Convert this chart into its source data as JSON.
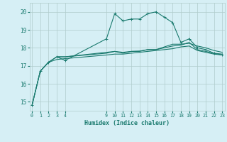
{
  "xlabel": "Humidex (Indice chaleur)",
  "bg_color": "#d6eff5",
  "grid_color": "#b0cccc",
  "line_color": "#1a7a6e",
  "xlim": [
    -0.3,
    23.3
  ],
  "ylim": [
    14.5,
    20.5
  ],
  "yticks": [
    15,
    16,
    17,
    18,
    19,
    20
  ],
  "xticks": [
    0,
    1,
    2,
    3,
    4,
    9,
    10,
    11,
    12,
    13,
    14,
    15,
    16,
    17,
    18,
    19,
    20,
    21,
    22,
    23
  ],
  "line1_x": [
    0,
    1,
    2,
    3,
    4,
    9,
    10,
    11,
    12,
    13,
    14,
    15,
    16,
    17,
    18,
    19,
    20,
    21,
    22,
    23
  ],
  "line1_y": [
    14.8,
    16.7,
    17.2,
    17.5,
    17.3,
    18.5,
    19.9,
    19.5,
    19.6,
    19.6,
    19.9,
    20.0,
    19.7,
    19.4,
    18.3,
    18.5,
    18.0,
    17.9,
    17.7,
    17.6
  ],
  "line2_x": [
    0,
    1,
    2,
    3,
    4,
    9,
    10,
    11,
    12,
    13,
    14,
    15,
    16,
    17,
    18,
    19,
    20,
    21,
    22,
    23
  ],
  "line2_y": [
    14.8,
    16.7,
    17.2,
    17.5,
    17.5,
    17.7,
    17.8,
    17.7,
    17.8,
    17.8,
    17.9,
    17.9,
    18.0,
    18.1,
    18.15,
    18.3,
    17.9,
    17.8,
    17.7,
    17.65
  ],
  "line3_x": [
    0,
    1,
    2,
    3,
    4,
    9,
    10,
    11,
    12,
    13,
    14,
    15,
    16,
    17,
    18,
    19,
    20,
    21,
    22,
    23
  ],
  "line3_y": [
    14.8,
    16.7,
    17.2,
    17.35,
    17.4,
    17.6,
    17.65,
    17.65,
    17.7,
    17.75,
    17.8,
    17.85,
    17.9,
    17.95,
    18.05,
    18.1,
    17.85,
    17.75,
    17.65,
    17.6
  ],
  "line4_x": [
    3,
    4,
    9,
    10,
    11,
    12,
    13,
    14,
    15,
    16,
    17,
    18,
    19,
    20,
    21,
    22,
    23
  ],
  "line4_y": [
    17.5,
    17.5,
    17.75,
    17.8,
    17.75,
    17.8,
    17.82,
    17.9,
    17.9,
    18.05,
    18.2,
    18.2,
    18.25,
    18.1,
    18.0,
    17.85,
    17.75
  ]
}
